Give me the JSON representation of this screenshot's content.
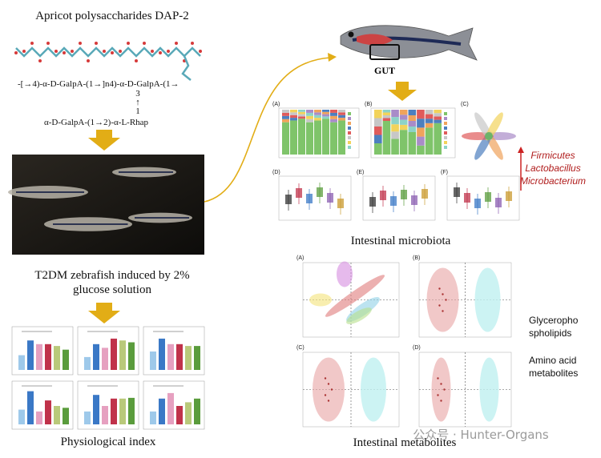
{
  "left": {
    "title": "Apricot polysaccharides DAP-2",
    "formula": {
      "main": "-[→4)-α-D-GalpA-(1→]n4)-α-D-GalpA-(1→",
      "branch": [
        "3",
        "↑",
        "1"
      ],
      "side": "α-D-GalpA-(1→2)-α-L-Rhap"
    },
    "model_label": [
      "T2DM zebrafish induced by 2%",
      "glucose solution"
    ],
    "physiology_label": "Physiological index"
  },
  "right": {
    "gut_label": "GUT",
    "microbiota": {
      "panels": [
        "(A)",
        "(B)",
        "(C)",
        "(D)",
        "(E)",
        "(F)"
      ],
      "taxa": [
        "Firmicutes",
        "Lactobacillus",
        "Microbacterium"
      ],
      "label": "Intestinal microbiota"
    },
    "metabolites": {
      "panels": [
        "(A)",
        "(B)",
        "(C)",
        "(D)"
      ],
      "pathways": [
        [
          "Glycerophо",
          "spholipids"
        ],
        [
          "Amino acid",
          "metabolites"
        ]
      ],
      "label": "Intestinal metabolites"
    }
  },
  "watermark": "公众号 · Hunter-Organs"
}
